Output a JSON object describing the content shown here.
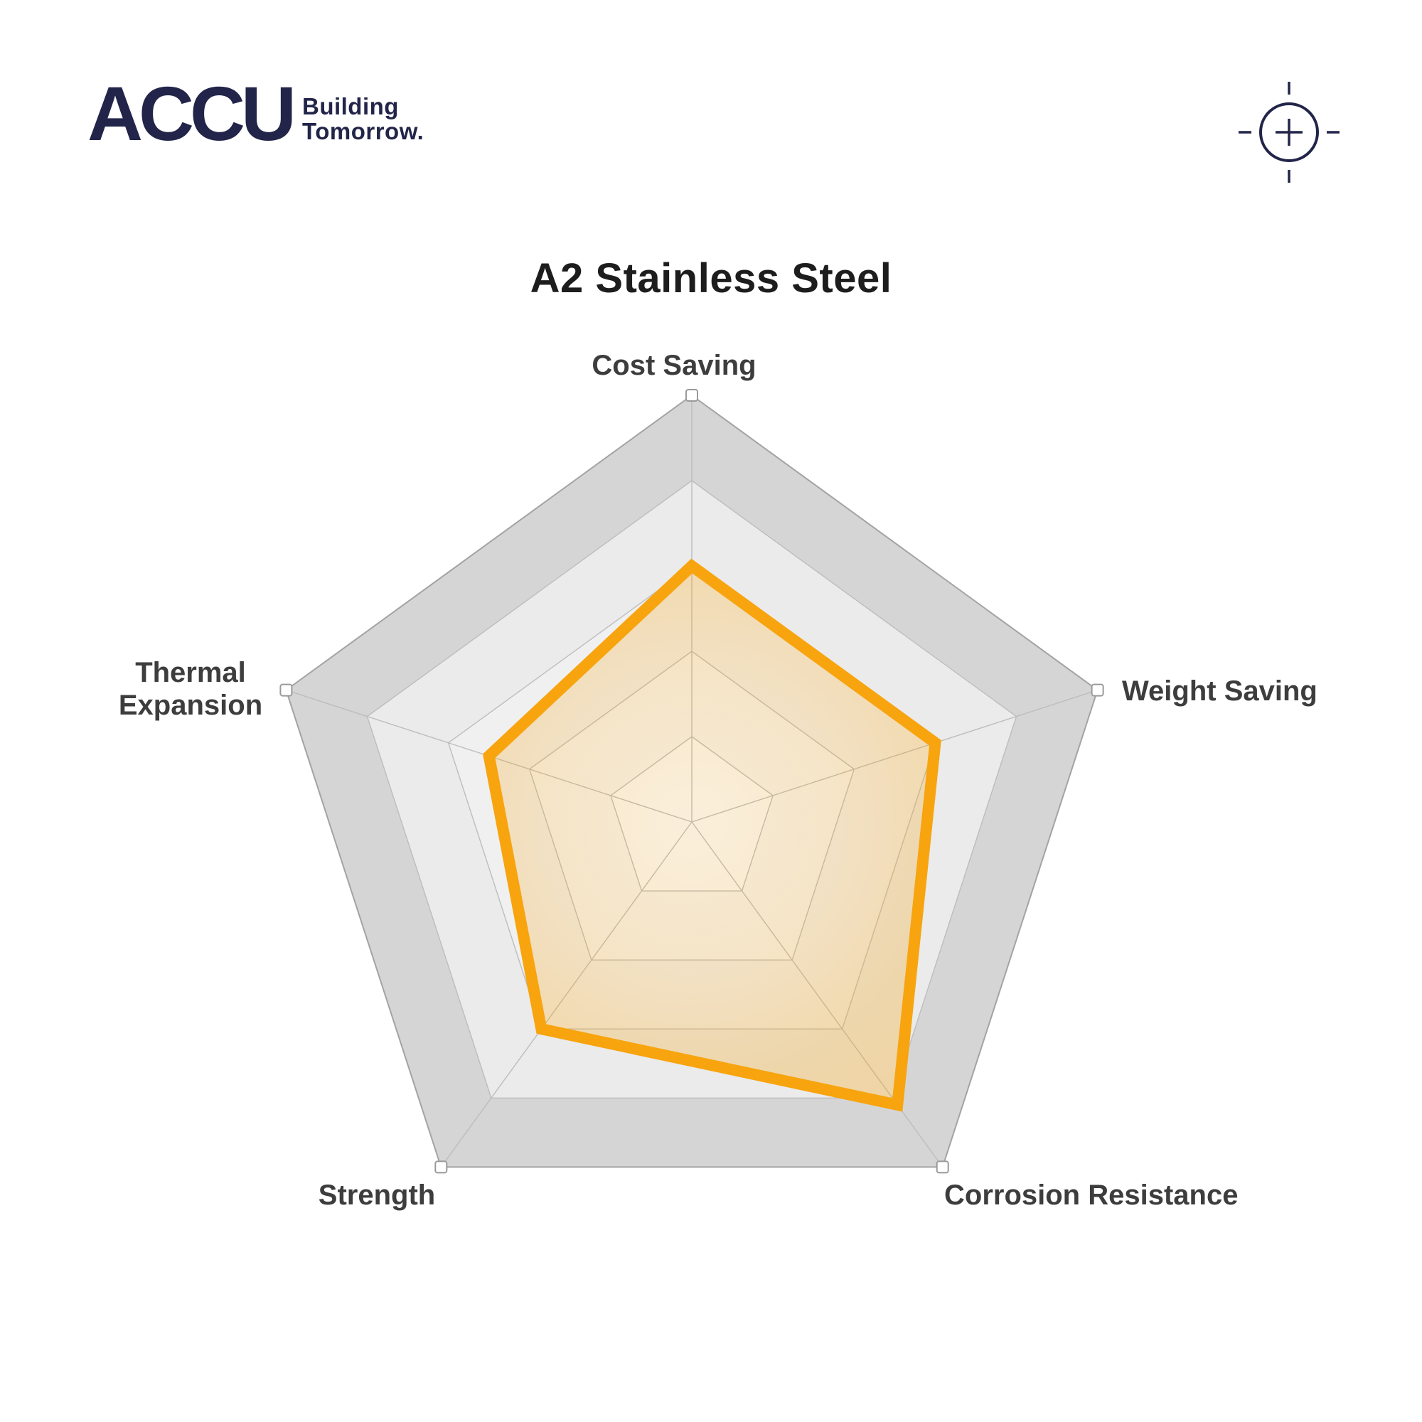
{
  "header": {
    "logo_text": "ACCU",
    "tagline_line1": "Building",
    "tagline_line2": "Tomorrow.",
    "logo_color": "#222549"
  },
  "title": "A2 Stainless Steel",
  "chart_data": {
    "type": "radar",
    "title": "A2 Stainless Steel",
    "grid_shape": "pentagon",
    "rings": 5,
    "scale_max": 5,
    "legend": "none",
    "categories": [
      "Cost Saving",
      "Weight Saving",
      "Corrosion Resistance",
      "Strength",
      "Thermal Expansion"
    ],
    "values": [
      3,
      3,
      4.1,
      3,
      2.5
    ],
    "series_color": "#F7A40E",
    "ring_fills": [
      "#d5d5d6",
      "#ebebec",
      "#f0f0f1",
      "#f5f5f5",
      "#fafafa"
    ],
    "grid_stroke": "#bdbdbd",
    "grid_outer_stroke": "#a3a3a3",
    "vertex_marker_fill": "#ffffff",
    "vertex_marker_stroke": "#9a9a9a",
    "label_color": "#3d3d3d"
  }
}
